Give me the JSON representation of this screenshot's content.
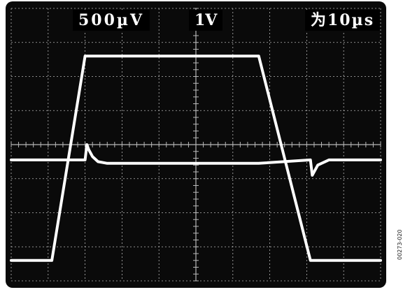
{
  "scope": {
    "ch1_scale": "500µV",
    "ch2_scale": "1V",
    "timebase": "为10µs",
    "figure_id": "00273-020",
    "colors": {
      "background": "#0a0a0a",
      "grid": "#b8b8b8",
      "trace": "#ffffff"
    }
  },
  "chart_data": {
    "type": "line",
    "title": "",
    "xlabel": "",
    "ylabel": "",
    "x_divisions": 10,
    "y_divisions": 8,
    "xlim": [
      0,
      10
    ],
    "ylim": [
      0,
      8
    ],
    "grid": true,
    "series": [
      {
        "x": [
          0,
          1.1,
          2.0,
          6.7,
          8.1,
          10
        ],
        "y": [
          0.6,
          0.6,
          6.6,
          6.6,
          0.6,
          0.6
        ]
      },
      {
        "x": [
          0,
          1.1,
          2.0,
          2.05,
          2.1,
          2.2,
          2.35,
          2.6,
          6.7,
          8.1,
          8.15,
          8.3,
          8.6,
          10
        ],
        "y": [
          3.55,
          3.55,
          3.55,
          4.0,
          3.85,
          3.65,
          3.5,
          3.45,
          3.45,
          3.55,
          3.1,
          3.4,
          3.55,
          3.55
        ]
      }
    ]
  }
}
